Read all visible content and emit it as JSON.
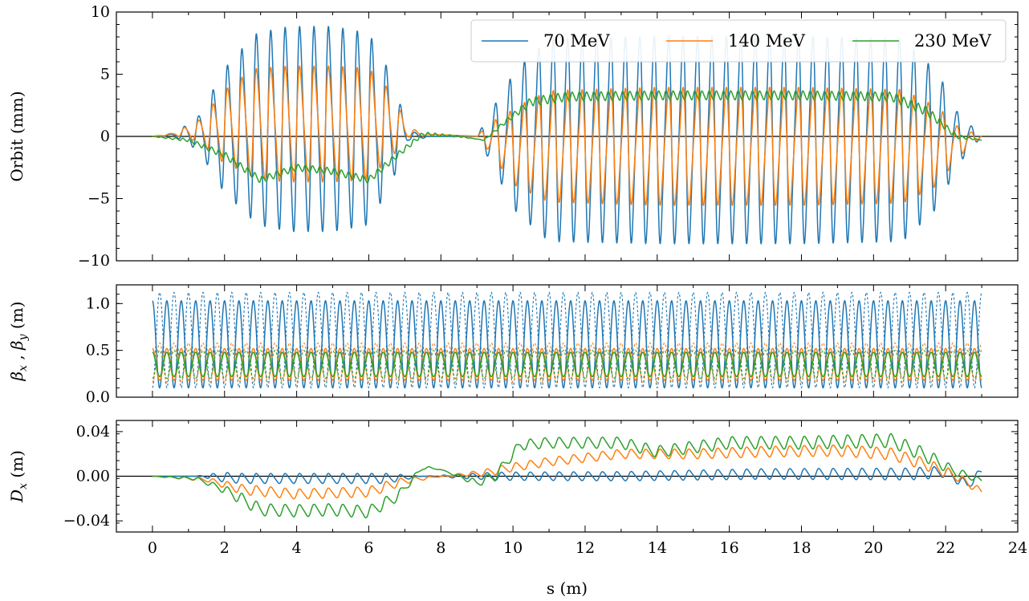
{
  "chart_data": [
    {
      "type": "line",
      "ylabel": "Orbit (mm)",
      "xlim": [
        -1,
        24
      ],
      "ylim": [
        -10,
        10
      ],
      "yticks": [
        -10,
        -5,
        0,
        5,
        10
      ],
      "ytick_labels": [
        "−10",
        "−5",
        "0",
        "5",
        "10"
      ],
      "xtick_labels_visible": false,
      "zero_line": true,
      "legend": {
        "placement": "top-right",
        "columns": 3
      },
      "series": [
        {
          "name": "70 MeV",
          "color": "#1f77b4",
          "envelope": [
            [
              0,
              0
            ],
            [
              0.6,
              0.1
            ],
            [
              1.3,
              1.6
            ],
            [
              2.0,
              5.6
            ],
            [
              2.9,
              8.6
            ],
            [
              3.8,
              9.2
            ],
            [
              5.0,
              9.2
            ],
            [
              6.0,
              8.6
            ],
            [
              6.6,
              5.0
            ],
            [
              7.1,
              0.5
            ],
            [
              7.7,
              0.0
            ],
            [
              9.0,
              0.0
            ],
            [
              9.5,
              -3.0
            ],
            [
              10.1,
              -6.5
            ],
            [
              11.0,
              -9.1
            ],
            [
              14.0,
              -9.3
            ],
            [
              18.0,
              -9.3
            ],
            [
              20.8,
              -9.1
            ],
            [
              21.8,
              -6.0
            ],
            [
              22.3,
              -2.5
            ],
            [
              23.0,
              0.0
            ]
          ],
          "mean": [
            [
              0,
              0
            ],
            [
              1.5,
              0.3
            ],
            [
              2.5,
              0.6
            ],
            [
              6.5,
              0.6
            ],
            [
              7.3,
              0.0
            ],
            [
              9.2,
              0.0
            ],
            [
              10.0,
              -0.3
            ],
            [
              21.8,
              -0.3
            ],
            [
              23.0,
              0.0
            ]
          ],
          "oscillation_period": 0.4,
          "end_value": 0.0
        },
        {
          "name": "140 MeV",
          "color": "#ff7f0e",
          "envelope": [
            [
              0,
              0
            ],
            [
              0.6,
              0.1
            ],
            [
              1.3,
              1.0
            ],
            [
              2.0,
              3.3
            ],
            [
              2.9,
              5.0
            ],
            [
              3.8,
              5.2
            ],
            [
              5.0,
              5.2
            ],
            [
              6.0,
              5.0
            ],
            [
              6.6,
              3.0
            ],
            [
              7.1,
              0.5
            ],
            [
              7.7,
              0.0
            ],
            [
              9.0,
              0.0
            ],
            [
              9.5,
              -1.8
            ],
            [
              10.1,
              -3.6
            ],
            [
              11.0,
              -5.0
            ],
            [
              14.0,
              -5.3
            ],
            [
              18.0,
              -5.3
            ],
            [
              20.8,
              -5.1
            ],
            [
              21.8,
              -3.5
            ],
            [
              22.3,
              -1.5
            ],
            [
              23.0,
              0.0
            ]
          ],
          "mean": [
            [
              0,
              0
            ],
            [
              1.5,
              0.5
            ],
            [
              2.5,
              1.0
            ],
            [
              6.5,
              1.0
            ],
            [
              7.3,
              0.2
            ],
            [
              9.2,
              0.0
            ],
            [
              10.0,
              -0.8
            ],
            [
              21.8,
              -0.8
            ],
            [
              23.0,
              0.0
            ]
          ],
          "oscillation_period": 0.4,
          "end_value": 0.0
        },
        {
          "name": "230 MeV",
          "color": "#2ca02c",
          "envelope": [
            [
              0,
              0.0
            ],
            [
              2.0,
              0.3
            ],
            [
              6.5,
              0.3
            ],
            [
              9.0,
              0.0
            ],
            [
              10.5,
              0.4
            ],
            [
              21.5,
              0.4
            ],
            [
              23.0,
              0.0
            ]
          ],
          "mean": [
            [
              0,
              0
            ],
            [
              1.0,
              -0.3
            ],
            [
              2.0,
              -1.5
            ],
            [
              3.0,
              -3.5
            ],
            [
              4.0,
              -2.5
            ],
            [
              5.0,
              -2.8
            ],
            [
              6.0,
              -3.5
            ],
            [
              7.0,
              -1.0
            ],
            [
              7.5,
              0.2
            ],
            [
              8.5,
              0.0
            ],
            [
              9.2,
              -0.3
            ],
            [
              9.8,
              1.2
            ],
            [
              10.5,
              2.8
            ],
            [
              11.5,
              3.2
            ],
            [
              14.0,
              3.3
            ],
            [
              18.0,
              3.3
            ],
            [
              20.5,
              3.2
            ],
            [
              21.5,
              2.0
            ],
            [
              22.3,
              0.0
            ],
            [
              23.0,
              -0.3
            ]
          ],
          "oscillation_period": 0.2,
          "end_value": -0.3
        }
      ]
    },
    {
      "type": "line",
      "ylabel": "βx , βy (m)",
      "xlim": [
        -1,
        24
      ],
      "ylim": [
        0,
        1.2
      ],
      "yticks": [
        0.0,
        0.5,
        1.0
      ],
      "ytick_labels": [
        "0.0",
        "0.5",
        "1.0"
      ],
      "xtick_labels_visible": false,
      "oscillation_period": 0.4,
      "series": [
        {
          "energy": "70 MeV",
          "plane": "x",
          "style": "solid",
          "color": "#1f77b4",
          "min": 0.1,
          "max": 1.03
        },
        {
          "energy": "70 MeV",
          "plane": "y",
          "style": "dashed",
          "color": "#1f77b4",
          "min": 0.1,
          "max": 1.12
        },
        {
          "energy": "140 MeV",
          "plane": "x",
          "style": "solid",
          "color": "#ff7f0e",
          "min": 0.18,
          "max": 0.52
        },
        {
          "energy": "140 MeV",
          "plane": "y",
          "style": "dashed",
          "color": "#ff7f0e",
          "min": 0.16,
          "max": 0.58
        },
        {
          "energy": "230 MeV",
          "plane": "x",
          "style": "solid",
          "color": "#2ca02c",
          "min": 0.22,
          "max": 0.48
        },
        {
          "energy": "230 MeV",
          "plane": "y",
          "style": "dashed",
          "color": "#2ca02c",
          "min": 0.2,
          "max": 0.5
        }
      ]
    },
    {
      "type": "line",
      "ylabel": "Dx (m)",
      "xlabel": "s (m)",
      "xlim": [
        -1,
        24
      ],
      "ylim": [
        -0.05,
        0.05
      ],
      "yticks": [
        -0.04,
        0.0,
        0.04
      ],
      "ytick_labels": [
        "−0.04",
        "0.00",
        "0.04"
      ],
      "xticks": [
        0,
        2,
        4,
        6,
        8,
        10,
        12,
        14,
        16,
        18,
        20,
        22,
        24
      ],
      "xtick_labels": [
        "0",
        "2",
        "4",
        "6",
        "8",
        "10",
        "12",
        "14",
        "16",
        "18",
        "20",
        "22",
        "24"
      ],
      "zero_line": true,
      "series": [
        {
          "name": "70 MeV",
          "color": "#1f77b4",
          "envelope": [
            [
              0,
              0.0
            ],
            [
              1.2,
              0.0
            ],
            [
              2.0,
              0.005
            ],
            [
              6.5,
              0.005
            ],
            [
              7.5,
              0.0
            ],
            [
              9.5,
              0.004
            ],
            [
              21.5,
              0.006
            ],
            [
              23.0,
              0.004
            ]
          ],
          "mean": [
            [
              0,
              0
            ],
            [
              1.5,
              0.0
            ],
            [
              2.5,
              -0.002
            ],
            [
              6.5,
              -0.002
            ],
            [
              7.5,
              0.0
            ],
            [
              9.5,
              0.0
            ],
            [
              13.0,
              0.0
            ],
            [
              17.0,
              0.002
            ],
            [
              21.0,
              0.002
            ],
            [
              22.0,
              0.004
            ],
            [
              22.6,
              -0.008
            ],
            [
              23.0,
              0.004
            ]
          ],
          "oscillation_period": 0.4,
          "end_value": 0.004
        },
        {
          "name": "140 MeV",
          "color": "#ff7f0e",
          "envelope": [
            [
              0,
              0.0
            ],
            [
              1.5,
              0.002
            ],
            [
              2.5,
              0.005
            ],
            [
              6.5,
              0.005
            ],
            [
              8.0,
              0.0
            ],
            [
              9.5,
              0.004
            ],
            [
              21.5,
              0.006
            ],
            [
              23.0,
              0.003
            ]
          ],
          "mean": [
            [
              0,
              0
            ],
            [
              1.5,
              -0.003
            ],
            [
              2.5,
              -0.012
            ],
            [
              4.0,
              -0.016
            ],
            [
              6.0,
              -0.014
            ],
            [
              7.0,
              -0.004
            ],
            [
              8.0,
              0.0
            ],
            [
              9.2,
              0.003
            ],
            [
              10.0,
              0.008
            ],
            [
              11.0,
              0.013
            ],
            [
              13.0,
              0.02
            ],
            [
              15.0,
              0.02
            ],
            [
              17.0,
              0.022
            ],
            [
              19.0,
              0.023
            ],
            [
              20.5,
              0.02
            ],
            [
              21.5,
              0.01
            ],
            [
              22.3,
              0.0
            ],
            [
              23.0,
              -0.014
            ]
          ],
          "oscillation_period": 0.4,
          "end_value": -0.014
        },
        {
          "name": "230 MeV",
          "color": "#2ca02c",
          "envelope": [
            [
              0,
              0.0
            ],
            [
              1.5,
              0.002
            ],
            [
              2.5,
              0.006
            ],
            [
              6.5,
              0.006
            ],
            [
              8.0,
              0.0
            ],
            [
              9.5,
              0.005
            ],
            [
              21.5,
              0.007
            ],
            [
              23.0,
              0.002
            ]
          ],
          "mean": [
            [
              0,
              0
            ],
            [
              1.2,
              -0.002
            ],
            [
              2.0,
              -0.012
            ],
            [
              3.0,
              -0.03
            ],
            [
              4.0,
              -0.031
            ],
            [
              5.0,
              -0.03
            ],
            [
              6.0,
              -0.032
            ],
            [
              6.8,
              -0.018
            ],
            [
              7.5,
              0.008
            ],
            [
              8.0,
              0.006
            ],
            [
              9.0,
              -0.006
            ],
            [
              9.5,
              0.0
            ],
            [
              10.2,
              0.028
            ],
            [
              11.0,
              0.03
            ],
            [
              13.0,
              0.03
            ],
            [
              14.0,
              0.022
            ],
            [
              16.0,
              0.03
            ],
            [
              18.0,
              0.03
            ],
            [
              20.5,
              0.032
            ],
            [
              21.5,
              0.018
            ],
            [
              22.2,
              0.005
            ],
            [
              23.0,
              -0.004
            ]
          ],
          "oscillation_period": 0.4,
          "end_value": -0.004
        }
      ]
    }
  ]
}
